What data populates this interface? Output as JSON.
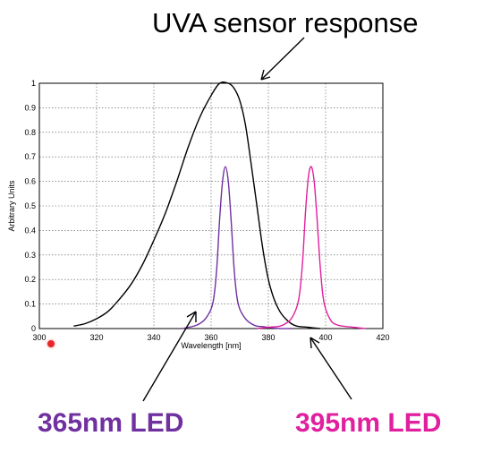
{
  "chart_data": {
    "type": "line",
    "xlabel": "Wavelength [nm]",
    "ylabel": "Arbitrary Units",
    "xlim": [
      300,
      420
    ],
    "ylim": [
      0,
      1
    ],
    "x_ticks": [
      300,
      320,
      340,
      360,
      380,
      400,
      420
    ],
    "y_ticks": [
      0,
      0.1,
      0.2,
      0.3,
      0.4,
      0.5,
      0.6,
      0.7,
      0.8,
      0.9,
      1
    ],
    "grid": true,
    "series": [
      {
        "name": "UVA sensor response",
        "color": "#000000",
        "x": [
          312,
          316,
          320,
          324,
          328,
          332,
          336,
          340,
          344,
          348,
          352,
          356,
          360,
          363,
          366,
          368,
          370,
          372,
          374,
          376,
          378,
          380,
          382,
          384,
          386,
          388,
          390,
          394,
          398
        ],
        "y": [
          0.01,
          0.02,
          0.04,
          0.07,
          0.12,
          0.18,
          0.26,
          0.36,
          0.47,
          0.6,
          0.74,
          0.86,
          0.95,
          1.0,
          1.0,
          0.98,
          0.93,
          0.83,
          0.67,
          0.5,
          0.33,
          0.2,
          0.12,
          0.07,
          0.04,
          0.02,
          0.01,
          0.005,
          0.0
        ]
      },
      {
        "name": "365nm LED",
        "color": "#7030a0",
        "x": [
          350,
          354,
          356,
          358,
          360,
          361,
          362,
          363,
          364,
          365,
          366,
          367,
          368,
          369,
          370,
          372,
          374,
          376,
          378,
          380,
          384,
          388
        ],
        "y": [
          0.0,
          0.01,
          0.02,
          0.04,
          0.08,
          0.13,
          0.25,
          0.45,
          0.6,
          0.66,
          0.6,
          0.44,
          0.25,
          0.13,
          0.08,
          0.04,
          0.02,
          0.01,
          0.008,
          0.005,
          0.0,
          0.0
        ]
      },
      {
        "name": "395nm LED",
        "color": "#e0209e",
        "x": [
          376,
          380,
          384,
          386,
          388,
          390,
          391,
          392,
          393,
          394,
          395,
          396,
          397,
          398,
          399,
          400,
          402,
          404,
          406,
          410,
          414
        ],
        "y": [
          0.0,
          0.005,
          0.01,
          0.02,
          0.04,
          0.09,
          0.15,
          0.28,
          0.48,
          0.62,
          0.66,
          0.6,
          0.45,
          0.27,
          0.14,
          0.08,
          0.03,
          0.015,
          0.01,
          0.005,
          0.0
        ]
      }
    ],
    "annotations": {
      "title": "UVA sensor response",
      "led365": "365nm LED",
      "led395": "395nm LED"
    }
  }
}
